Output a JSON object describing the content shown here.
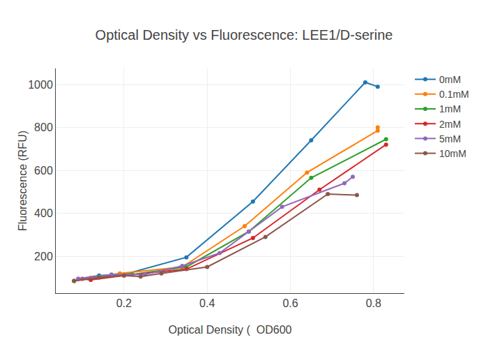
{
  "chart_data": {
    "type": "line",
    "title": "Optical Density vs Fluorescence: LEE1/D-serine",
    "x_label": "Optical Density (  OD600",
    "y_label": "Fluorescence (RFU)",
    "xlim": [
      0.036,
      0.874
    ],
    "ylim": [
      28,
      1075
    ],
    "xticks": [
      0.2,
      0.4,
      0.6,
      0.8
    ],
    "yticks": [
      200,
      400,
      600,
      800,
      1000
    ],
    "grid": true,
    "legend": "right",
    "marker": "circle",
    "series": [
      {
        "name": "0mM",
        "color": "#1f77b4",
        "x": [
          0.09,
          0.14,
          0.2,
          0.35,
          0.51,
          0.65,
          0.78,
          0.81
        ],
        "values": [
          95,
          110,
          115,
          195,
          455,
          740,
          1010,
          990
        ]
      },
      {
        "name": "0.1mM",
        "color": "#ff7f0e",
        "x": [
          0.08,
          0.12,
          0.19,
          0.34,
          0.49,
          0.64,
          0.81,
          0.81
        ],
        "values": [
          85,
          100,
          120,
          150,
          340,
          590,
          785,
          800
        ]
      },
      {
        "name": "1mM",
        "color": "#2ca02c",
        "x": [
          0.08,
          0.14,
          0.22,
          0.35,
          0.5,
          0.65,
          0.83
        ],
        "values": [
          85,
          105,
          115,
          150,
          315,
          565,
          745
        ]
      },
      {
        "name": "2mM",
        "color": "#d62728",
        "x": [
          0.1,
          0.12,
          0.2,
          0.35,
          0.51,
          0.67,
          0.83
        ],
        "values": [
          95,
          90,
          110,
          140,
          285,
          510,
          720
        ]
      },
      {
        "name": "5mM",
        "color": "#9467bd",
        "x": [
          0.09,
          0.17,
          0.25,
          0.34,
          0.43,
          0.5,
          0.58,
          0.73,
          0.75
        ],
        "values": [
          95,
          115,
          115,
          155,
          215,
          315,
          430,
          540,
          570
        ]
      },
      {
        "name": "10mM",
        "color": "#8c564b",
        "x": [
          0.08,
          0.14,
          0.2,
          0.24,
          0.29,
          0.4,
          0.54,
          0.69,
          0.76
        ],
        "values": [
          85,
          100,
          110,
          105,
          120,
          150,
          290,
          490,
          485
        ]
      }
    ]
  }
}
